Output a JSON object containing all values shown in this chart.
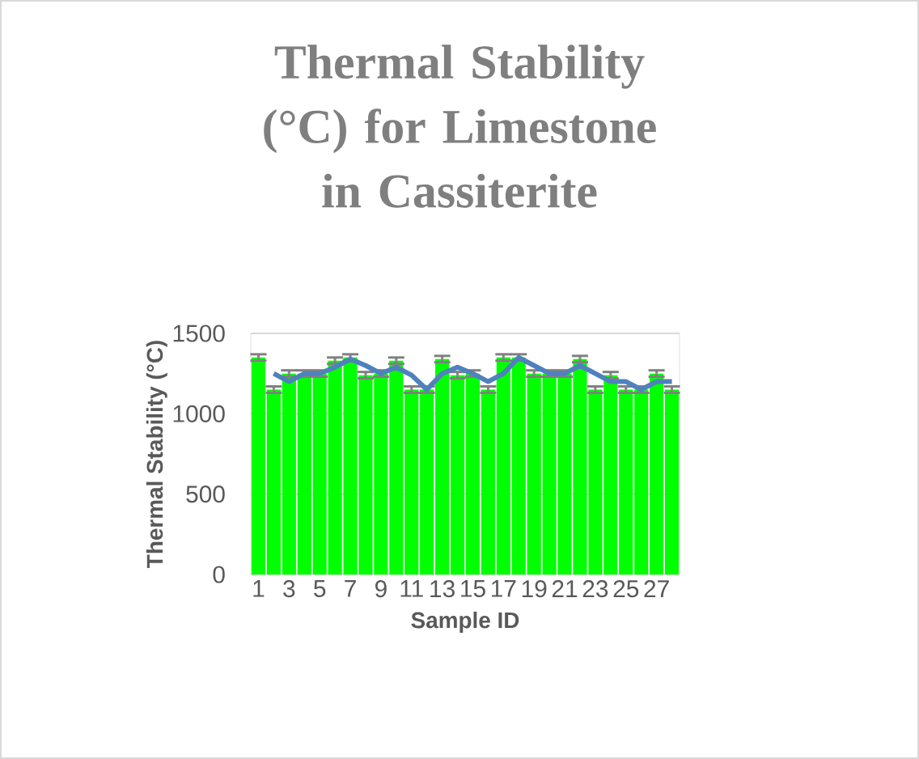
{
  "chart_data": {
    "type": "bar",
    "title": "Thermal Stability (°C) for Limestone in Cassiterite",
    "xlabel": "Sample ID",
    "ylabel": "Thermal Stability (°C)",
    "categories": [
      "1",
      null,
      "3",
      null,
      "5",
      null,
      "7",
      null,
      "9",
      null,
      "11",
      null,
      "13",
      null,
      "15",
      null,
      "17",
      null,
      "19",
      null,
      "21",
      null,
      "23",
      null,
      "25",
      null,
      "27",
      null
    ],
    "series": [
      {
        "color": "#00ff00",
        "values": [
          1350,
          1150,
          1250,
          1250,
          1250,
          1330,
          1350,
          1240,
          1250,
          1330,
          1150,
          1150,
          1340,
          1240,
          1250,
          1150,
          1350,
          1350,
          1250,
          1250,
          1250,
          1340,
          1150,
          1240,
          1150,
          1150,
          1250,
          1150
        ],
        "errors": [
          20,
          20,
          20,
          20,
          20,
          20,
          20,
          20,
          20,
          20,
          20,
          20,
          20,
          20,
          20,
          20,
          20,
          20,
          20,
          20,
          20,
          20,
          20,
          20,
          20,
          20,
          20,
          20
        ]
      },
      {
        "type": "line",
        "color": "#4f81bd",
        "values": [
          null,
          1250,
          1200,
          1250,
          1250,
          1290,
          1340,
          1300,
          1250,
          1290,
          1240,
          1150,
          1250,
          1290,
          1250,
          1200,
          1250,
          1350,
          1300,
          1250,
          1250,
          1300,
          1250,
          1200,
          1200,
          1150,
          1200,
          1200
        ]
      }
    ],
    "ylim": [
      0,
      1500
    ],
    "yticks": [
      0,
      500,
      1000,
      1500
    ],
    "grid": "y"
  }
}
